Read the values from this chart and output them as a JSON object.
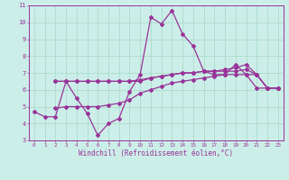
{
  "xlabel": "Windchill (Refroidissement éolien,°C)",
  "xlim": [
    -0.5,
    23.5
  ],
  "ylim": [
    3,
    11
  ],
  "xtick_labels": [
    "0",
    "1",
    "2",
    "3",
    "4",
    "5",
    "6",
    "7",
    "8",
    "9",
    "10",
    "11",
    "12",
    "13",
    "14",
    "15",
    "16",
    "17",
    "18",
    "19",
    "20",
    "21",
    "22",
    "23"
  ],
  "ytick_labels": [
    "3",
    "4",
    "5",
    "6",
    "7",
    "8",
    "9",
    "10",
    "11"
  ],
  "bg_color": "#cceee8",
  "grid_color": "#aaddcc",
  "line_color": "#993399",
  "lines": [
    {
      "x": [
        0,
        1,
        2,
        3,
        4,
        5,
        6,
        7,
        8,
        9,
        10,
        11,
        12,
        13,
        14,
        15,
        16,
        17,
        18,
        19,
        20,
        21,
        22,
        23
      ],
      "y": [
        4.7,
        4.4,
        4.4,
        6.5,
        5.5,
        4.6,
        3.3,
        4.0,
        4.3,
        5.9,
        6.9,
        10.3,
        9.9,
        10.7,
        9.3,
        8.6,
        7.1,
        6.9,
        6.9,
        7.5,
        6.9,
        6.1,
        6.1,
        6.1
      ]
    },
    {
      "x": [
        2,
        3,
        4,
        5,
        6,
        7,
        8,
        9,
        10,
        11,
        12,
        13,
        14,
        15,
        16,
        17,
        18,
        19,
        20,
        21,
        22,
        23
      ],
      "y": [
        6.5,
        6.5,
        6.5,
        6.5,
        6.5,
        6.5,
        6.5,
        6.5,
        6.6,
        6.7,
        6.8,
        6.9,
        7.0,
        7.0,
        7.1,
        7.1,
        7.1,
        7.1,
        7.2,
        6.9,
        6.1,
        6.1
      ]
    },
    {
      "x": [
        2,
        3,
        4,
        5,
        6,
        7,
        8,
        9,
        10,
        11,
        12,
        13,
        14,
        15,
        16,
        17,
        18,
        19,
        20,
        21,
        22,
        23
      ],
      "y": [
        6.5,
        6.5,
        6.5,
        6.5,
        6.5,
        6.5,
        6.5,
        6.5,
        6.5,
        6.7,
        6.8,
        6.9,
        7.0,
        7.0,
        7.1,
        7.1,
        7.2,
        7.3,
        7.5,
        6.9,
        6.1,
        6.1
      ]
    },
    {
      "x": [
        2,
        3,
        4,
        5,
        6,
        7,
        8,
        9,
        10,
        11,
        12,
        13,
        14,
        15,
        16,
        17,
        18,
        19,
        20,
        21,
        22,
        23
      ],
      "y": [
        4.9,
        5.0,
        5.0,
        5.0,
        5.0,
        5.1,
        5.2,
        5.4,
        5.8,
        6.0,
        6.2,
        6.4,
        6.5,
        6.6,
        6.7,
        6.8,
        6.9,
        6.9,
        6.9,
        6.9,
        6.1,
        6.1
      ]
    }
  ]
}
